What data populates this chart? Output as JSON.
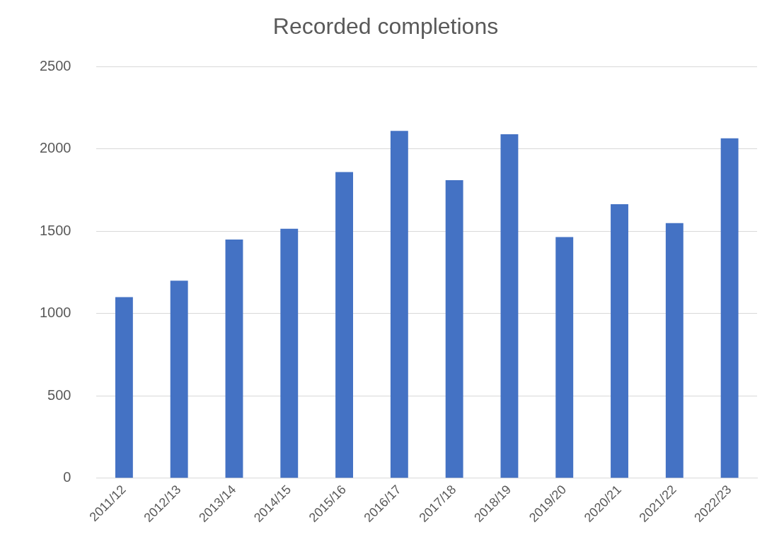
{
  "chart_data": {
    "type": "bar",
    "title": "Recorded completions",
    "categories": [
      "2011/12",
      "2012/13",
      "2013/14",
      "2014/15",
      "2015/16",
      "2016/17",
      "2017/18",
      "2018/19",
      "2019/20",
      "2020/21",
      "2021/22",
      "2022/23"
    ],
    "values": [
      1100,
      1200,
      1450,
      1515,
      1860,
      2110,
      1810,
      2090,
      1465,
      1665,
      1550,
      2065
    ],
    "color": "#4472c4",
    "ylim": [
      0,
      2500
    ],
    "yticks": [
      0,
      500,
      1000,
      1500,
      2000,
      2500
    ],
    "grid": "y",
    "legend": false
  }
}
